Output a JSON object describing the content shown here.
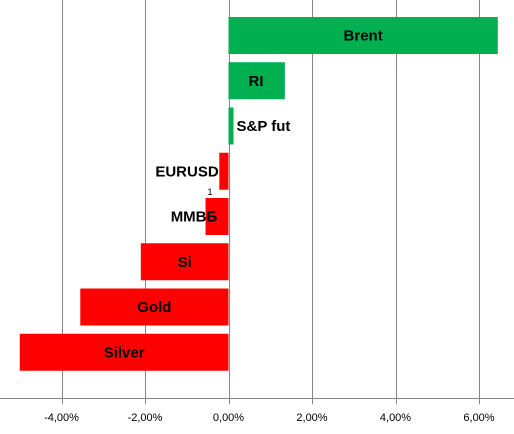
{
  "chart_data": {
    "type": "bar",
    "orientation": "horizontal",
    "title": "",
    "xlabel": "",
    "ylabel": "",
    "categories": [
      "Brent",
      "RI",
      "S&P fut",
      "EURUSD",
      "ММВБ",
      "Si",
      "Gold",
      "Silver"
    ],
    "values": [
      6.45,
      1.35,
      0.12,
      -0.22,
      -0.55,
      -2.1,
      -3.55,
      -5.0
    ],
    "xlim": [
      -5.0,
      6.75
    ],
    "xticks": [
      -4,
      -2,
      0,
      2,
      4,
      6
    ],
    "xtick_labels": [
      "-4,00%",
      "-2,00%",
      "0,00%",
      "2,00%",
      "4,00%",
      "6,00%"
    ],
    "grid": "vertical",
    "legend": "none",
    "positive_color": "#00b050",
    "negative_color": "#ff0000",
    "annotation": "1"
  }
}
